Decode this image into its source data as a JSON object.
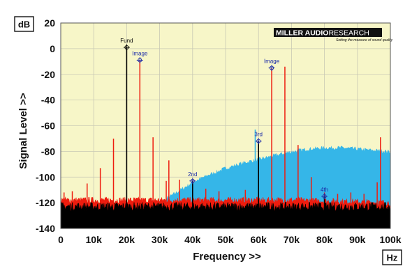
{
  "chart_data": {
    "type": "line",
    "xlabel": "Frequency >>",
    "ylabel": "Signal Level >>",
    "x_unit": "Hz",
    "y_unit": "dB",
    "xlim": [
      0,
      100000
    ],
    "ylim": [
      -140,
      20
    ],
    "x_ticks": [
      "0",
      "10k",
      "20k",
      "30k",
      "40k",
      "50k",
      "60k",
      "70k",
      "80k",
      "90k",
      "100k"
    ],
    "x_tick_values": [
      0,
      10000,
      20000,
      30000,
      40000,
      50000,
      60000,
      70000,
      80000,
      90000,
      100000
    ],
    "y_ticks": [
      "20",
      "0",
      "-20",
      "-40",
      "-60",
      "-80",
      "-100",
      "-120",
      "-140"
    ],
    "y_tick_values": [
      20,
      0,
      -20,
      -40,
      -60,
      -80,
      -100,
      -120,
      -140
    ],
    "grid": true,
    "legend": "none",
    "colors": {
      "plot_bg": "#f7f6c8",
      "red_series": "#ee1c0e",
      "black_series": "#000000",
      "noise_shaped": "#35b6e8",
      "annotation_black": "#000000",
      "annotation_blue": "#1a2aa8"
    },
    "series": [
      {
        "color": "red",
        "noise_floor_db": -118,
        "peaks": [
          {
            "x": 1000,
            "y": -112
          },
          {
            "x": 3500,
            "y": -111
          },
          {
            "x": 8000,
            "y": -105
          },
          {
            "x": 12000,
            "y": -93
          },
          {
            "x": 16000,
            "y": -70
          },
          {
            "x": 24000,
            "y": -9
          },
          {
            "x": 28000,
            "y": -69
          },
          {
            "x": 32000,
            "y": -103
          },
          {
            "x": 32800,
            "y": -87
          },
          {
            "x": 36000,
            "y": -102
          },
          {
            "x": 44000,
            "y": -109
          },
          {
            "x": 48000,
            "y": -111
          },
          {
            "x": 56000,
            "y": -110
          },
          {
            "x": 60000,
            "y": -118
          },
          {
            "x": 64000,
            "y": -15
          },
          {
            "x": 68000,
            "y": -14
          },
          {
            "x": 72000,
            "y": -75
          },
          {
            "x": 76000,
            "y": -100
          },
          {
            "x": 80000,
            "y": -112
          },
          {
            "x": 84000,
            "y": -113
          },
          {
            "x": 88000,
            "y": -112
          },
          {
            "x": 92000,
            "y": -113
          },
          {
            "x": 96000,
            "y": -104
          },
          {
            "x": 97000,
            "y": -69
          }
        ]
      },
      {
        "color": "cyan",
        "shape": "noise-shaped floor",
        "envelope": [
          {
            "x": 28000,
            "y": -125
          },
          {
            "x": 30000,
            "y": -120
          },
          {
            "x": 35000,
            "y": -112
          },
          {
            "x": 40000,
            "y": -104
          },
          {
            "x": 45000,
            "y": -98
          },
          {
            "x": 50000,
            "y": -93
          },
          {
            "x": 55000,
            "y": -89
          },
          {
            "x": 60000,
            "y": -86
          },
          {
            "x": 65000,
            "y": -83
          },
          {
            "x": 70000,
            "y": -80
          },
          {
            "x": 75000,
            "y": -78
          },
          {
            "x": 80000,
            "y": -77
          },
          {
            "x": 85000,
            "y": -77
          },
          {
            "x": 90000,
            "y": -78
          },
          {
            "x": 95000,
            "y": -79
          },
          {
            "x": 100000,
            "y": -80
          }
        ],
        "peaks": [
          {
            "x": 59000,
            "y": -63
          }
        ]
      },
      {
        "color": "black",
        "noise_floor_db": -123,
        "peaks": [
          {
            "x": 20000,
            "y": 1
          },
          {
            "x": 40000,
            "y": -103
          },
          {
            "x": 60000,
            "y": -72
          },
          {
            "x": 80000,
            "y": -115
          }
        ]
      }
    ],
    "annotations": [
      {
        "text": "Fund",
        "x": 20000,
        "y": 1,
        "color": "black"
      },
      {
        "text": "Image",
        "x": 24000,
        "y": -9,
        "color": "blue"
      },
      {
        "text": "Image",
        "x": 64000,
        "y": -15,
        "color": "blue"
      },
      {
        "text": "2nd",
        "x": 40000,
        "y": -103,
        "color": "blue"
      },
      {
        "text": "3rd",
        "x": 60000,
        "y": -72,
        "color": "blue"
      },
      {
        "text": "4th",
        "x": 80000,
        "y": -115,
        "color": "blue"
      }
    ]
  },
  "brand": {
    "name_part1": "MILLER AUDIO",
    "name_part2": "RESEARCH",
    "tagline": "Setting the measure of sound quality"
  }
}
